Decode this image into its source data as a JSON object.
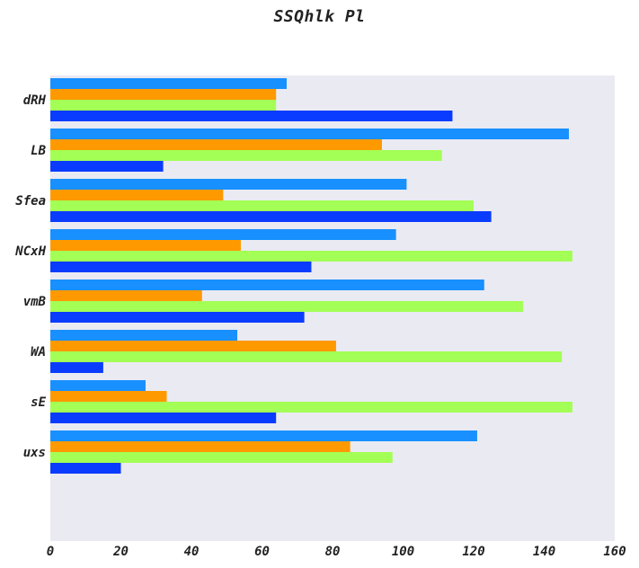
{
  "chart_data": {
    "type": "bar",
    "orientation": "horizontal",
    "title": "SSQhlk Pl",
    "xlabel": "",
    "ylabel": "",
    "categories": [
      "dRH",
      "LB",
      "Sfea",
      "NCxH",
      "vmB",
      "WA",
      "sE",
      "uxs"
    ],
    "series": [
      {
        "color": "#1890ff",
        "values": [
          67,
          147,
          101,
          98,
          123,
          53,
          27,
          121
        ]
      },
      {
        "color": "#ff9900",
        "values": [
          64,
          94,
          49,
          54,
          43,
          81,
          33,
          85
        ]
      },
      {
        "color": "#a3ff55",
        "values": [
          64,
          111,
          120,
          148,
          134,
          145,
          148,
          97
        ]
      },
      {
        "color": "#0a3cff",
        "values": [
          114,
          32,
          125,
          74,
          72,
          15,
          64,
          20
        ]
      }
    ],
    "xlim": [
      0,
      160
    ],
    "xticks": [
      "0",
      "20",
      "40",
      "60",
      "80",
      "100",
      "120",
      "140",
      "160"
    ],
    "grid": false,
    "legend": "none",
    "colors": {
      "plot_background": "#eaeaf2",
      "page_background": "#ffffff",
      "text": "#222222"
    }
  }
}
